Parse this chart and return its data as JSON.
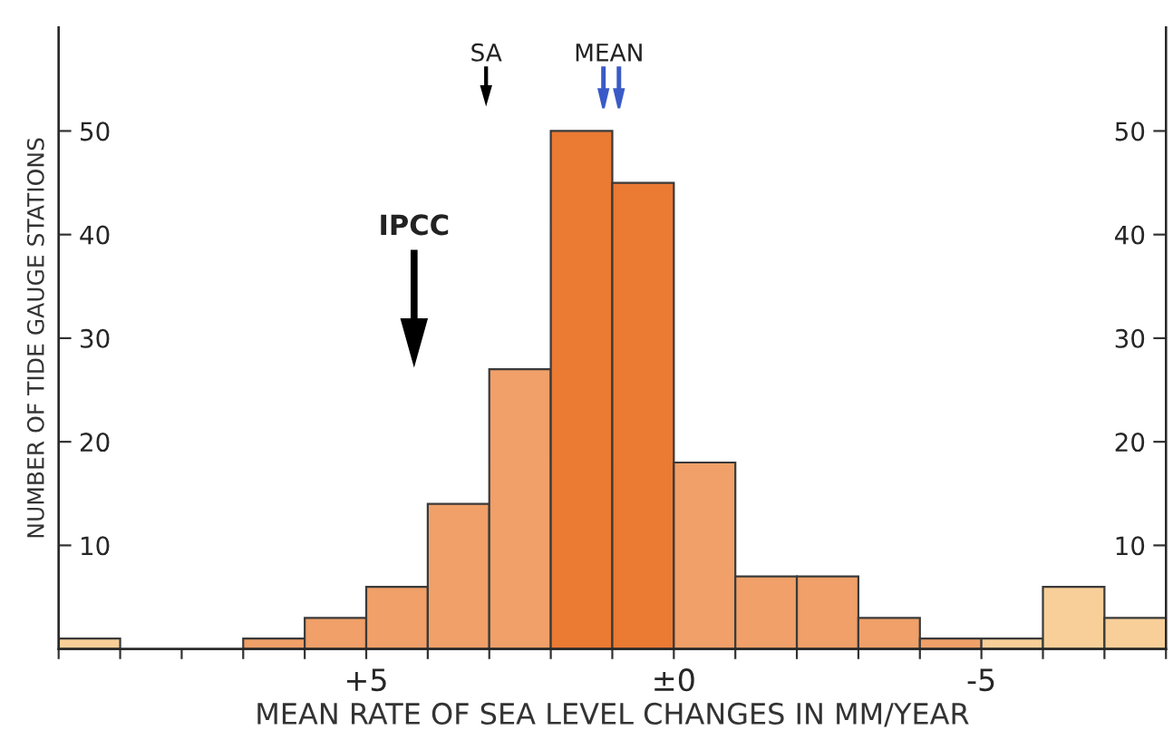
{
  "chart_data": {
    "type": "histogram",
    "xlabel": "MEAN RATE OF SEA LEVEL CHANGES IN MM/YEAR",
    "ylabel": "NUMBER OF TIDE GAUGE STATIONS",
    "bins": [
      10,
      9,
      8,
      7,
      6,
      5,
      4,
      3,
      2,
      1,
      0,
      -1,
      -2,
      -3,
      -4,
      -5,
      -6,
      -7,
      -8
    ],
    "values": [
      1,
      0,
      0,
      1,
      3,
      6,
      14,
      27,
      50,
      45,
      18,
      7,
      7,
      3,
      1,
      1,
      6,
      3
    ],
    "colors": [
      "#f8cf98",
      "#f8cf98",
      "#f8cf98",
      "#f0a068",
      "#f0a068",
      "#f0a068",
      "#f0a068",
      "#f0a068",
      "#eb7a33",
      "#eb7a33",
      "#f0a068",
      "#f0a068",
      "#f0a068",
      "#f0a068",
      "#f0a068",
      "#f8cf98",
      "#f8cf98",
      "#f8cf98"
    ],
    "xlim": [
      10,
      -8
    ],
    "xticks": [
      {
        "value": 10,
        "label": null
      },
      {
        "value": 9,
        "label": null
      },
      {
        "value": 8,
        "label": null
      },
      {
        "value": 7,
        "label": null
      },
      {
        "value": 6,
        "label": null
      },
      {
        "value": 5,
        "label": "+5"
      },
      {
        "value": 4,
        "label": null
      },
      {
        "value": 3,
        "label": null
      },
      {
        "value": 2,
        "label": null
      },
      {
        "value": 1,
        "label": null
      },
      {
        "value": 0,
        "label": "±0"
      },
      {
        "value": -1,
        "label": null
      },
      {
        "value": -2,
        "label": null
      },
      {
        "value": -3,
        "label": null
      },
      {
        "value": -4,
        "label": null
      },
      {
        "value": -5,
        "label": "-5"
      },
      {
        "value": -6,
        "label": null
      },
      {
        "value": -7,
        "label": null
      },
      {
        "value": -8,
        "label": null
      }
    ],
    "ylim": [
      0,
      60
    ],
    "yticks": [
      10,
      20,
      30,
      40,
      50
    ],
    "y2lim": [
      0,
      60
    ],
    "y2ticks": [
      10,
      20,
      30,
      40,
      50
    ],
    "grid": false,
    "legend": false,
    "annotations": [
      "IPCC",
      "SA",
      "MEAN"
    ]
  }
}
